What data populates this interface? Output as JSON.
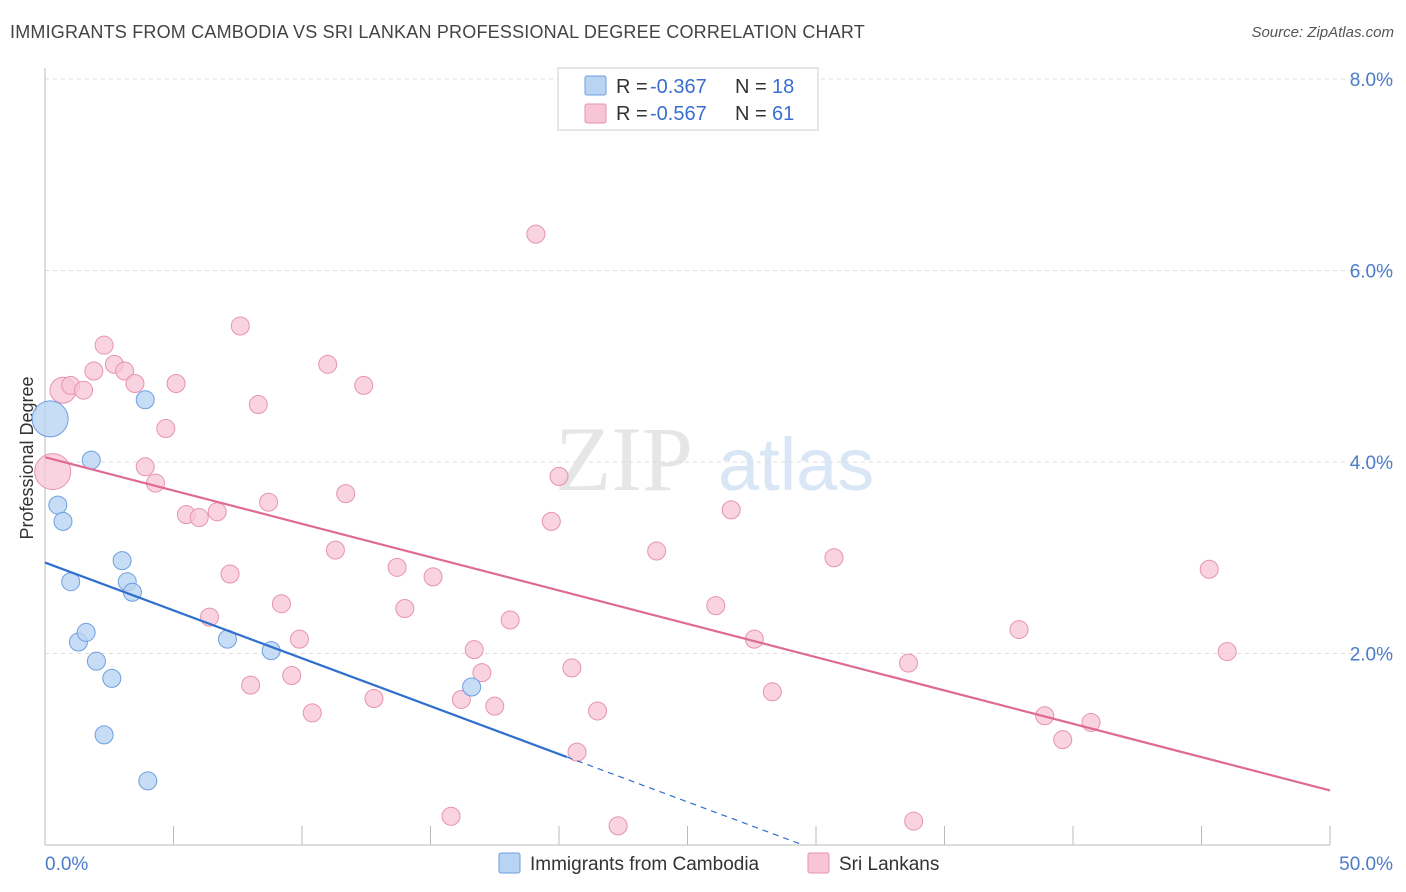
{
  "header": {
    "title": "IMMIGRANTS FROM CAMBODIA VS SRI LANKAN PROFESSIONAL DEGREE CORRELATION CHART",
    "source": "Source: ZipAtlas.com"
  },
  "watermark": {
    "zip": "ZIP",
    "atlas": "atlas"
  },
  "colors": {
    "cambodia_fill": "#b9d3f3",
    "cambodia_stroke": "#6d9fe0",
    "cambodia_line": "#2f6fcd",
    "srilanka_fill": "#f7c5d5",
    "srilanka_stroke": "#e793b0",
    "srilanka_line": "#de6a95",
    "axis_label": "#4a7cc9",
    "grid": "#dddddd"
  },
  "legend": {
    "rows": [
      {
        "r_label": "R = ",
        "r_value": "-0.367",
        "n_label": "N = ",
        "n_value": "18"
      },
      {
        "r_label": "R = ",
        "r_value": "-0.567",
        "n_label": "N = ",
        "n_value": "61"
      }
    ]
  },
  "bottom_legend": [
    "Immigrants from Cambodia",
    "Sri Lankans"
  ],
  "chart_data": {
    "type": "scatter",
    "title": "IMMIGRANTS FROM CAMBODIA VS SRI LANKAN PROFESSIONAL DEGREE CORRELATION CHART",
    "xlabel": "",
    "ylabel": "Professional Degree",
    "xlim": [
      0,
      50
    ],
    "ylim": [
      0,
      8.2
    ],
    "x_tick_labels": [
      "0.0%",
      "50.0%"
    ],
    "y_ticks": [
      2,
      4,
      6,
      8
    ],
    "y_tick_labels": [
      "2.0%",
      "4.0%",
      "6.0%",
      "8.0%"
    ],
    "grid": true,
    "series": [
      {
        "name": "Immigrants from Cambodia",
        "r": -0.367,
        "n": 18,
        "trend": {
          "x0": 0,
          "y0": 2.95,
          "x1": 20.3,
          "y1": 0.92,
          "dash_to_x": 29.5,
          "dash_to_y": 0.0
        },
        "points": [
          [
            0.2,
            4.45,
            18
          ],
          [
            0.5,
            3.55,
            9
          ],
          [
            0.7,
            3.38,
            9
          ],
          [
            1.0,
            2.75,
            9
          ],
          [
            1.3,
            2.12,
            9
          ],
          [
            1.6,
            2.22,
            9
          ],
          [
            1.8,
            4.02,
            9
          ],
          [
            2.0,
            1.92,
            9
          ],
          [
            2.3,
            1.15,
            9
          ],
          [
            2.6,
            1.74,
            9
          ],
          [
            3.0,
            2.97,
            9
          ],
          [
            3.2,
            2.75,
            9
          ],
          [
            3.4,
            2.64,
            9
          ],
          [
            3.9,
            4.65,
            9
          ],
          [
            4.0,
            0.67,
            9
          ],
          [
            7.1,
            2.15,
            9
          ],
          [
            8.8,
            2.03,
            9
          ],
          [
            16.6,
            1.65,
            9
          ]
        ]
      },
      {
        "name": "Sri Lankans",
        "r": -0.567,
        "n": 61,
        "trend": {
          "x0": 0,
          "y0": 4.05,
          "x1": 50,
          "y1": 0.57
        },
        "points": [
          [
            0.3,
            3.9,
            18
          ],
          [
            0.7,
            4.75,
            13
          ],
          [
            1.0,
            4.8,
            9
          ],
          [
            1.5,
            4.75,
            9
          ],
          [
            1.9,
            4.95,
            9
          ],
          [
            2.3,
            5.22,
            9
          ],
          [
            2.7,
            5.02,
            9
          ],
          [
            3.1,
            4.95,
            9
          ],
          [
            3.5,
            4.82,
            9
          ],
          [
            3.9,
            3.95,
            9
          ],
          [
            4.3,
            3.78,
            9
          ],
          [
            4.7,
            4.35,
            9
          ],
          [
            5.1,
            4.82,
            9
          ],
          [
            5.5,
            3.45,
            9
          ],
          [
            6.0,
            3.42,
            9
          ],
          [
            6.4,
            2.38,
            9
          ],
          [
            6.7,
            3.48,
            9
          ],
          [
            7.2,
            2.83,
            9
          ],
          [
            7.6,
            5.42,
            9
          ],
          [
            8.0,
            1.67,
            9
          ],
          [
            8.3,
            4.6,
            9
          ],
          [
            8.7,
            3.58,
            9
          ],
          [
            9.2,
            2.52,
            9
          ],
          [
            9.6,
            1.77,
            9
          ],
          [
            9.9,
            2.15,
            9
          ],
          [
            10.4,
            1.38,
            9
          ],
          [
            11.0,
            5.02,
            9
          ],
          [
            11.3,
            3.08,
            9
          ],
          [
            11.7,
            3.67,
            9
          ],
          [
            12.4,
            4.8,
            9
          ],
          [
            12.8,
            1.53,
            9
          ],
          [
            13.7,
            2.9,
            9
          ],
          [
            14.0,
            2.47,
            9
          ],
          [
            15.1,
            2.8,
            9
          ],
          [
            15.8,
            0.3,
            9
          ],
          [
            16.2,
            1.52,
            9
          ],
          [
            16.7,
            2.04,
            9
          ],
          [
            17.0,
            1.8,
            9
          ],
          [
            17.5,
            1.45,
            9
          ],
          [
            18.1,
            2.35,
            9
          ],
          [
            19.1,
            6.38,
            9
          ],
          [
            19.7,
            3.38,
            9
          ],
          [
            20.0,
            3.85,
            9
          ],
          [
            20.5,
            1.85,
            9
          ],
          [
            20.7,
            0.97,
            9
          ],
          [
            21.5,
            1.4,
            9
          ],
          [
            22.3,
            0.2,
            9
          ],
          [
            23.8,
            3.07,
            9
          ],
          [
            26.1,
            2.5,
            9
          ],
          [
            26.7,
            3.5,
            9
          ],
          [
            27.6,
            2.15,
            9
          ],
          [
            28.3,
            1.6,
            9
          ],
          [
            30.7,
            3.0,
            9
          ],
          [
            33.6,
            1.9,
            9
          ],
          [
            33.8,
            0.25,
            9
          ],
          [
            37.9,
            2.25,
            9
          ],
          [
            38.9,
            1.35,
            9
          ],
          [
            39.6,
            1.1,
            9
          ],
          [
            40.7,
            1.28,
            9
          ],
          [
            45.3,
            2.88,
            9
          ],
          [
            46.0,
            2.02,
            9
          ]
        ]
      }
    ]
  }
}
